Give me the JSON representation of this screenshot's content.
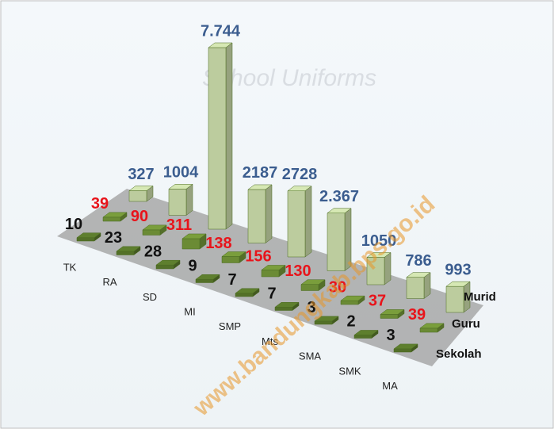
{
  "chart_data": {
    "type": "bar3d",
    "background_text": "School Uniforms",
    "watermark": "www.bandungkab.bps.go.id",
    "categories": [
      "TK",
      "RA",
      "SD",
      "MI",
      "SMP",
      "Mts",
      "SMA",
      "SMK",
      "MA"
    ],
    "series": [
      {
        "name": "Sekolah",
        "color": "#5e7f2e",
        "label_color": "#111111",
        "values": [
          10,
          23,
          28,
          9,
          7,
          7,
          3,
          2,
          3
        ]
      },
      {
        "name": "Guru",
        "color": "#7a9e3c",
        "label_color": "#e8141b",
        "values": [
          39,
          90,
          311,
          138,
          156,
          130,
          30,
          37,
          39
        ]
      },
      {
        "name": "Murid",
        "color": "#d6e8b4",
        "label_color": "#3b5d8f",
        "values": [
          327,
          1004,
          7744,
          2187,
          2728,
          2367,
          1050,
          786,
          993
        ],
        "value_labels": [
          "327",
          "1004",
          "7.744",
          "2187",
          "2728",
          "2.367",
          "1050",
          "786",
          "993"
        ]
      }
    ]
  }
}
